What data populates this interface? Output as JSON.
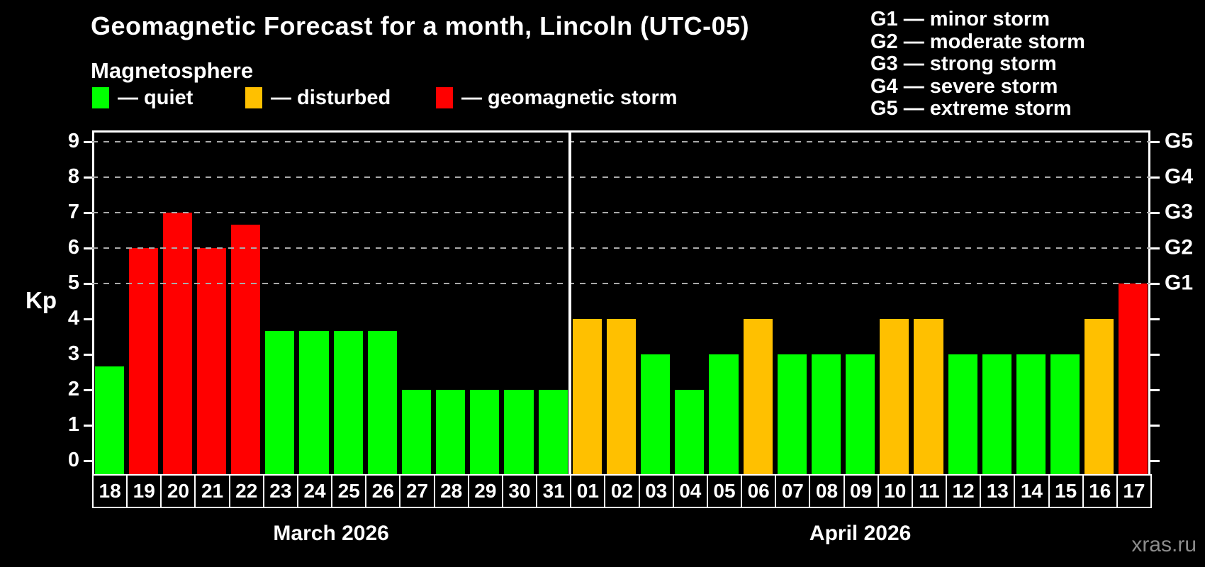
{
  "title": "Geomagnetic Forecast for a month, Lincoln (UTC-05)",
  "subtitle": "Magnetosphere",
  "legend": {
    "items": [
      {
        "key": "quiet",
        "label": "— quiet"
      },
      {
        "key": "disturbed",
        "label": "— disturbed"
      },
      {
        "key": "storm",
        "label": "— geomagnetic storm"
      }
    ]
  },
  "g_legend": {
    "items": [
      "G1 — minor storm",
      "G2 — moderate storm",
      "G3 — strong storm",
      "G4 — severe storm",
      "G5 — extreme storm"
    ]
  },
  "watermark": "xras.ru",
  "colors": {
    "quiet": "#00ff00",
    "disturbed": "#ffc000",
    "storm": "#ff0000",
    "grid": "#aaaaaa",
    "axis": "#ffffff",
    "background": "#000000",
    "watermark": "#8c8c8c"
  },
  "chart_data": {
    "type": "bar",
    "title": "Geomagnetic Forecast for a month, Lincoln (UTC-05)",
    "ylabel": "Kp",
    "ylim": [
      0,
      9
    ],
    "y_ticks": [
      0,
      1,
      2,
      3,
      4,
      5,
      6,
      7,
      8,
      9
    ],
    "gridlines_at_kp": [
      5,
      6,
      7,
      8,
      9
    ],
    "grid": "dashed horizontal lines at Kp 5-9 only",
    "legend_position": "top-left",
    "right_axis": [
      {
        "kp": 5,
        "label": "G1"
      },
      {
        "kp": 6,
        "label": "G2"
      },
      {
        "kp": 7,
        "label": "G3"
      },
      {
        "kp": 8,
        "label": "G4"
      },
      {
        "kp": 9,
        "label": "G5"
      }
    ],
    "months": [
      {
        "label": "March 2026",
        "days": [
          {
            "day": "18",
            "kp": 2.67,
            "status": "quiet"
          },
          {
            "day": "19",
            "kp": 6,
            "status": "storm"
          },
          {
            "day": "20",
            "kp": 7,
            "status": "storm"
          },
          {
            "day": "21",
            "kp": 6,
            "status": "storm"
          },
          {
            "day": "22",
            "kp": 6.67,
            "status": "storm"
          },
          {
            "day": "23",
            "kp": 3.67,
            "status": "quiet"
          },
          {
            "day": "24",
            "kp": 3.67,
            "status": "quiet"
          },
          {
            "day": "25",
            "kp": 3.67,
            "status": "quiet"
          },
          {
            "day": "26",
            "kp": 3.67,
            "status": "quiet"
          },
          {
            "day": "27",
            "kp": 2,
            "status": "quiet"
          },
          {
            "day": "28",
            "kp": 2,
            "status": "quiet"
          },
          {
            "day": "29",
            "kp": 2,
            "status": "quiet"
          },
          {
            "day": "30",
            "kp": 2,
            "status": "quiet"
          },
          {
            "day": "31",
            "kp": 2,
            "status": "quiet"
          }
        ]
      },
      {
        "label": "April 2026",
        "days": [
          {
            "day": "01",
            "kp": 4,
            "status": "disturbed"
          },
          {
            "day": "02",
            "kp": 4,
            "status": "disturbed"
          },
          {
            "day": "03",
            "kp": 3,
            "status": "quiet"
          },
          {
            "day": "04",
            "kp": 2,
            "status": "quiet"
          },
          {
            "day": "05",
            "kp": 3,
            "status": "quiet"
          },
          {
            "day": "06",
            "kp": 4,
            "status": "disturbed"
          },
          {
            "day": "07",
            "kp": 3,
            "status": "quiet"
          },
          {
            "day": "08",
            "kp": 3,
            "status": "quiet"
          },
          {
            "day": "09",
            "kp": 3,
            "status": "quiet"
          },
          {
            "day": "10",
            "kp": 4,
            "status": "disturbed"
          },
          {
            "day": "11",
            "kp": 4,
            "status": "disturbed"
          },
          {
            "day": "12",
            "kp": 3,
            "status": "quiet"
          },
          {
            "day": "13",
            "kp": 3,
            "status": "quiet"
          },
          {
            "day": "14",
            "kp": 3,
            "status": "quiet"
          },
          {
            "day": "15",
            "kp": 3,
            "status": "quiet"
          },
          {
            "day": "16",
            "kp": 4,
            "status": "disturbed"
          },
          {
            "day": "17",
            "kp": 5,
            "status": "storm"
          }
        ]
      }
    ]
  }
}
